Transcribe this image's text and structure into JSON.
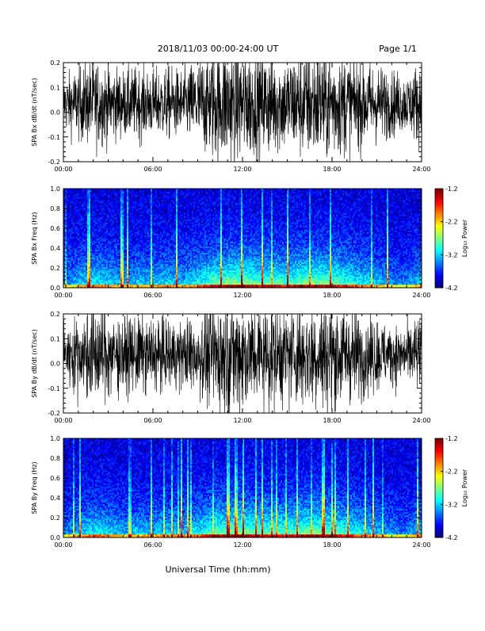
{
  "header": {
    "title": "2018/11/03  00:00-24:00 UT",
    "page_label": "Page 1/1"
  },
  "footer": {
    "xlabel": "Universal Time (hh:mm)"
  },
  "chart_data": [
    {
      "type": "line",
      "ylabel": "SPA Bx dB/dt (nT/sec)",
      "xlabel": "",
      "xlim": [
        0,
        24
      ],
      "ylim": [
        -0.2,
        0.2
      ],
      "x_ticks": [
        "00:00",
        "06:00",
        "12:00",
        "18:00",
        "24:00"
      ],
      "y_ticks": [
        "-0.2",
        "-0.1",
        "0.0",
        "0.1",
        "0.2"
      ],
      "series_color": "#000000",
      "amplitude_envelope": {
        "x_hours": [
          0,
          1,
          2,
          3,
          4,
          5,
          6,
          7,
          8,
          9,
          10,
          11,
          12,
          13,
          14,
          15,
          16,
          17,
          18,
          19,
          20,
          21,
          22,
          23,
          24
        ],
        "half_range": [
          0.1,
          0.13,
          0.16,
          0.14,
          0.12,
          0.13,
          0.12,
          0.13,
          0.12,
          0.16,
          0.2,
          0.22,
          0.22,
          0.18,
          0.19,
          0.17,
          0.2,
          0.21,
          0.2,
          0.18,
          0.16,
          0.14,
          0.12,
          0.1,
          0.16
        ]
      }
    },
    {
      "type": "heatmap",
      "ylabel": "SPA Bx Freq (Hz)",
      "xlim": [
        0,
        24
      ],
      "ylim": [
        0.0,
        1.0
      ],
      "x_ticks": [
        "00:00",
        "06:00",
        "12:00",
        "18:00",
        "24:00"
      ],
      "y_ticks": [
        "0.0",
        "0.2",
        "0.4",
        "0.6",
        "0.8",
        "1.0"
      ],
      "colorbar": {
        "label": "Log₁₀ Power",
        "range": [
          -4.2,
          -1.2
        ],
        "ticks": [
          "-1.2",
          "-2.2",
          "-3.2",
          "-4.2"
        ]
      },
      "activity_by_hour": [
        0.3,
        0.45,
        0.55,
        0.5,
        0.4,
        0.45,
        0.45,
        0.5,
        0.45,
        0.55,
        0.7,
        0.75,
        0.8,
        0.7,
        0.7,
        0.65,
        0.75,
        0.75,
        0.7,
        0.65,
        0.55,
        0.45,
        0.35,
        0.3,
        0.5
      ]
    },
    {
      "type": "line",
      "ylabel": "SPA By dB/dt (nT/sec)",
      "xlim": [
        0,
        24
      ],
      "ylim": [
        -0.2,
        0.2
      ],
      "x_ticks": [
        "00:00",
        "06:00",
        "12:00",
        "18:00",
        "24:00"
      ],
      "y_ticks": [
        "-0.2",
        "-0.1",
        "0.0",
        "0.1",
        "0.2"
      ],
      "series_color": "#000000",
      "amplitude_envelope": {
        "x_hours": [
          0,
          1,
          2,
          3,
          4,
          5,
          6,
          7,
          8,
          9,
          10,
          11,
          12,
          13,
          14,
          15,
          16,
          17,
          18,
          19,
          20,
          21,
          22,
          23,
          24
        ],
        "half_range": [
          0.1,
          0.14,
          0.18,
          0.16,
          0.13,
          0.14,
          0.13,
          0.13,
          0.12,
          0.15,
          0.19,
          0.21,
          0.21,
          0.18,
          0.19,
          0.17,
          0.19,
          0.2,
          0.2,
          0.17,
          0.15,
          0.13,
          0.11,
          0.1,
          0.15
        ]
      }
    },
    {
      "type": "heatmap",
      "ylabel": "SPA By Freq (Hz)",
      "xlim": [
        0,
        24
      ],
      "ylim": [
        0.0,
        1.0
      ],
      "x_ticks": [
        "00:00",
        "06:00",
        "12:00",
        "18:00",
        "24:00"
      ],
      "y_ticks": [
        "0.0",
        "0.2",
        "0.4",
        "0.6",
        "0.8",
        "1.0"
      ],
      "colorbar": {
        "label": "Log₁₀ Power",
        "range": [
          -4.2,
          -1.2
        ],
        "ticks": [
          "-1.2",
          "-2.2",
          "-3.2",
          "-4.2"
        ]
      },
      "activity_by_hour": [
        0.3,
        0.45,
        0.55,
        0.5,
        0.4,
        0.45,
        0.45,
        0.5,
        0.45,
        0.55,
        0.7,
        0.75,
        0.8,
        0.7,
        0.7,
        0.65,
        0.75,
        0.75,
        0.7,
        0.65,
        0.55,
        0.45,
        0.35,
        0.3,
        0.5
      ]
    }
  ]
}
